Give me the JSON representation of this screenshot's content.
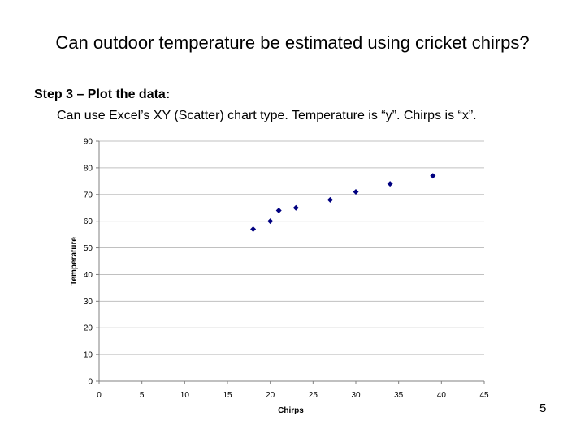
{
  "slide": {
    "title": "Can outdoor temperature be estimated using cricket chirps?",
    "step_heading": "Step 3 – Plot the data:",
    "description": "Can use Excel’s XY (Scatter) chart type.  Temperature is “y”.  Chirps is “x”.",
    "slide_number": "5"
  },
  "chart_data": {
    "type": "scatter",
    "xlabel": "Chirps",
    "ylabel": "Temperature",
    "xlim": [
      0,
      45
    ],
    "ylim": [
      0,
      90
    ],
    "xticks": [
      0,
      5,
      10,
      15,
      20,
      25,
      30,
      35,
      40,
      45
    ],
    "yticks": [
      0,
      10,
      20,
      30,
      40,
      50,
      60,
      70,
      80,
      90
    ],
    "grid": "horizontal",
    "legend": "none",
    "marker": "diamond",
    "marker_color": "#000080",
    "series": [
      {
        "points": [
          {
            "x": 18,
            "y": 57
          },
          {
            "x": 20,
            "y": 60
          },
          {
            "x": 21,
            "y": 64
          },
          {
            "x": 23,
            "y": 65
          },
          {
            "x": 27,
            "y": 68
          },
          {
            "x": 30,
            "y": 71
          },
          {
            "x": 34,
            "y": 74
          },
          {
            "x": 39,
            "y": 77
          }
        ]
      }
    ]
  }
}
